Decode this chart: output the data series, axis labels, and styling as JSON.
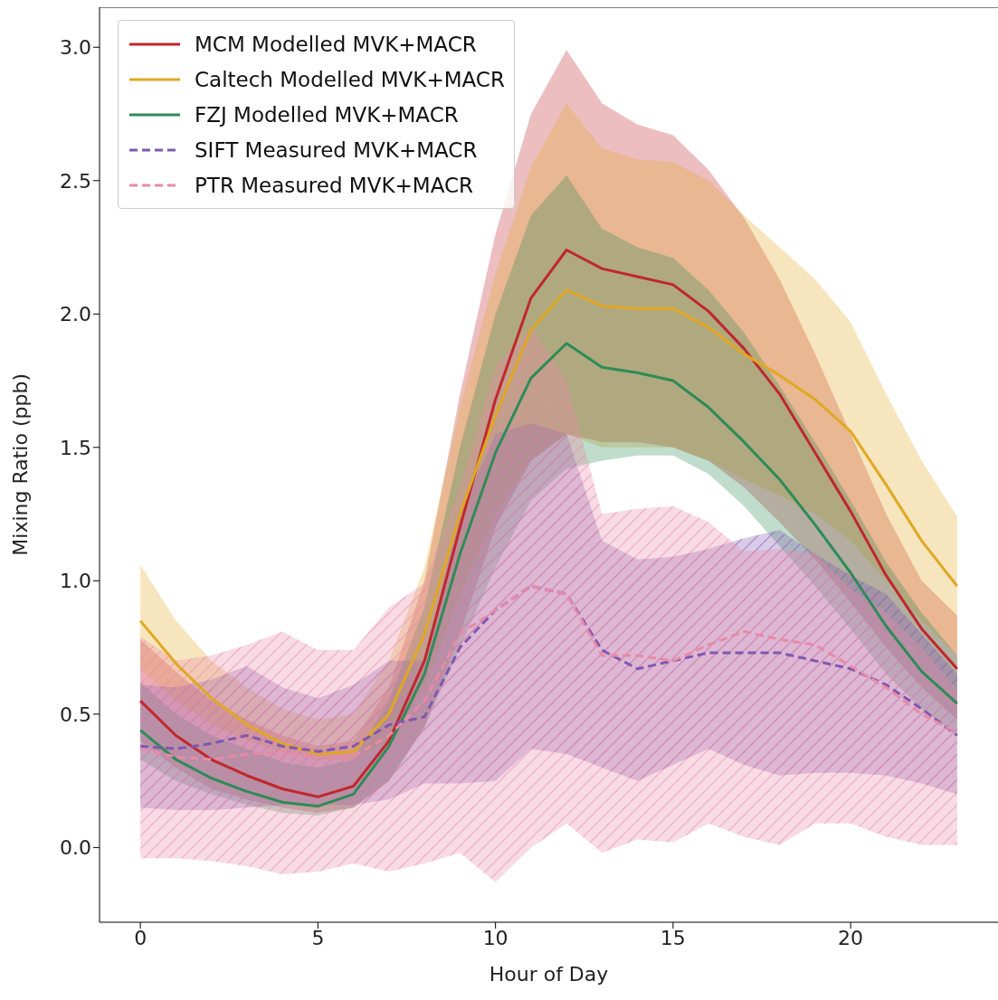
{
  "chart_data": {
    "type": "line",
    "xlabel": "Hour of Day",
    "ylabel": "Mixing Ratio (ppb)",
    "x": [
      0,
      1,
      2,
      3,
      4,
      5,
      6,
      7,
      8,
      9,
      10,
      11,
      12,
      13,
      14,
      15,
      16,
      17,
      18,
      19,
      20,
      21,
      22,
      23
    ],
    "xlim": [
      -1.15,
      24.15
    ],
    "xticks": [
      0,
      5,
      10,
      15,
      20
    ],
    "ylim": [
      -0.28,
      3.15
    ],
    "yticks": [
      {
        "value": 0,
        "label": "0.0"
      },
      {
        "value": 0.5,
        "label": "0.5"
      },
      {
        "value": 1,
        "label": "1.0"
      },
      {
        "value": 1.5,
        "label": "1.5"
      },
      {
        "value": 2,
        "label": "2.0"
      },
      {
        "value": 2.5,
        "label": "2.5"
      },
      {
        "value": 3,
        "label": "3.0"
      }
    ],
    "grid": false,
    "legend": "top left",
    "marker": "none",
    "series": [
      {
        "name": "MCM Modelled MVK+MACR",
        "color": "#c0272d",
        "line_style": "solid",
        "values": [
          0.55,
          0.42,
          0.33,
          0.27,
          0.22,
          0.19,
          0.23,
          0.4,
          0.7,
          1.2,
          1.68,
          2.06,
          2.24,
          2.17,
          2.14,
          2.11,
          2.01,
          1.87,
          1.7,
          1.48,
          1.26,
          1.02,
          0.82,
          0.67
        ],
        "lower": [
          0.4,
          0.3,
          0.22,
          0.18,
          0.15,
          0.13,
          0.15,
          0.25,
          0.45,
          0.8,
          1.2,
          1.45,
          1.55,
          1.52,
          1.52,
          1.5,
          1.45,
          1.35,
          1.22,
          1.08,
          0.92,
          0.75,
          0.6,
          0.48
        ],
        "upper": [
          0.78,
          0.66,
          0.55,
          0.48,
          0.42,
          0.38,
          0.4,
          0.6,
          1.0,
          1.7,
          2.3,
          2.75,
          2.99,
          2.79,
          2.71,
          2.67,
          2.54,
          2.36,
          2.13,
          1.85,
          1.55,
          1.25,
          1.0,
          0.87
        ]
      },
      {
        "name": "Caltech Modelled MVK+MACR",
        "color": "#e0a823",
        "line_style": "solid",
        "values": [
          0.85,
          0.69,
          0.56,
          0.46,
          0.39,
          0.35,
          0.36,
          0.5,
          0.8,
          1.25,
          1.62,
          1.94,
          2.09,
          2.03,
          2.02,
          2.02,
          1.95,
          1.85,
          1.77,
          1.68,
          1.56,
          1.36,
          1.15,
          0.98
        ],
        "lower": [
          0.67,
          0.55,
          0.46,
          0.4,
          0.36,
          0.33,
          0.33,
          0.4,
          0.6,
          0.95,
          1.25,
          1.45,
          1.55,
          1.5,
          1.5,
          1.5,
          1.45,
          1.38,
          1.32,
          1.25,
          1.15,
          1.0,
          0.85,
          0.72
        ],
        "upper": [
          1.06,
          0.85,
          0.7,
          0.6,
          0.52,
          0.48,
          0.5,
          0.7,
          1.05,
          1.65,
          2.15,
          2.55,
          2.79,
          2.62,
          2.58,
          2.57,
          2.5,
          2.37,
          2.25,
          2.13,
          1.97,
          1.7,
          1.45,
          1.24
        ]
      },
      {
        "name": "FZJ Modelled MVK+MACR",
        "color": "#2e8b57",
        "line_style": "solid",
        "values": [
          0.44,
          0.33,
          0.26,
          0.21,
          0.17,
          0.155,
          0.2,
          0.38,
          0.65,
          1.1,
          1.48,
          1.76,
          1.89,
          1.8,
          1.78,
          1.75,
          1.65,
          1.52,
          1.38,
          1.21,
          1.03,
          0.83,
          0.66,
          0.54
        ],
        "lower": [
          0.33,
          0.25,
          0.2,
          0.16,
          0.13,
          0.12,
          0.15,
          0.25,
          0.45,
          0.75,
          1.05,
          1.3,
          1.42,
          1.45,
          1.47,
          1.47,
          1.4,
          1.28,
          1.13,
          0.98,
          0.82,
          0.65,
          0.52,
          0.42
        ],
        "upper": [
          0.62,
          0.5,
          0.42,
          0.37,
          0.32,
          0.3,
          0.33,
          0.55,
          0.9,
          1.5,
          2.0,
          2.37,
          2.52,
          2.32,
          2.25,
          2.21,
          2.09,
          1.93,
          1.73,
          1.52,
          1.3,
          1.07,
          0.88,
          0.72
        ]
      },
      {
        "name": "SIFT Measured MVK+MACR",
        "color": "#8058b0",
        "line_style": "dashed",
        "values": [
          0.38,
          0.37,
          0.39,
          0.42,
          0.38,
          0.36,
          0.38,
          0.46,
          0.49,
          0.75,
          0.89,
          0.98,
          0.95,
          0.74,
          0.67,
          0.7,
          0.73,
          0.73,
          0.73,
          0.7,
          0.67,
          0.61,
          0.52,
          0.42
        ],
        "lower": [
          0.15,
          0.14,
          0.14,
          0.15,
          0.16,
          0.16,
          0.16,
          0.18,
          0.24,
          0.24,
          0.25,
          0.37,
          0.35,
          0.3,
          0.25,
          0.31,
          0.37,
          0.31,
          0.27,
          0.28,
          0.28,
          0.27,
          0.24,
          0.2
        ],
        "upper": [
          0.61,
          0.6,
          0.63,
          0.68,
          0.6,
          0.56,
          0.61,
          0.7,
          0.7,
          1.25,
          1.55,
          1.59,
          1.55,
          1.15,
          1.08,
          1.09,
          1.12,
          1.16,
          1.19,
          1.1,
          1.02,
          0.95,
          0.8,
          0.65
        ]
      },
      {
        "name": "PTR Measured MVK+MACR",
        "color": "#e88aa8",
        "line_style": "dashed",
        "values": [
          0.37,
          0.34,
          0.33,
          0.35,
          0.36,
          0.34,
          0.34,
          0.42,
          0.55,
          0.8,
          0.89,
          0.98,
          0.95,
          0.72,
          0.72,
          0.7,
          0.76,
          0.81,
          0.78,
          0.76,
          0.68,
          0.6,
          0.5,
          0.43
        ],
        "lower": [
          -0.04,
          -0.04,
          -0.05,
          -0.07,
          -0.1,
          -0.09,
          -0.06,
          -0.09,
          -0.06,
          -0.02,
          -0.13,
          0.0,
          0.09,
          -0.02,
          0.03,
          0.02,
          0.09,
          0.04,
          0.01,
          0.09,
          0.09,
          0.04,
          0.01,
          0.01
        ],
        "upper": [
          0.79,
          0.7,
          0.72,
          0.76,
          0.81,
          0.74,
          0.74,
          0.9,
          0.99,
          1.35,
          1.8,
          1.95,
          1.75,
          1.25,
          1.27,
          1.28,
          1.22,
          1.11,
          1.12,
          1.1,
          0.97,
          0.88,
          0.75,
          0.59
        ]
      }
    ]
  }
}
